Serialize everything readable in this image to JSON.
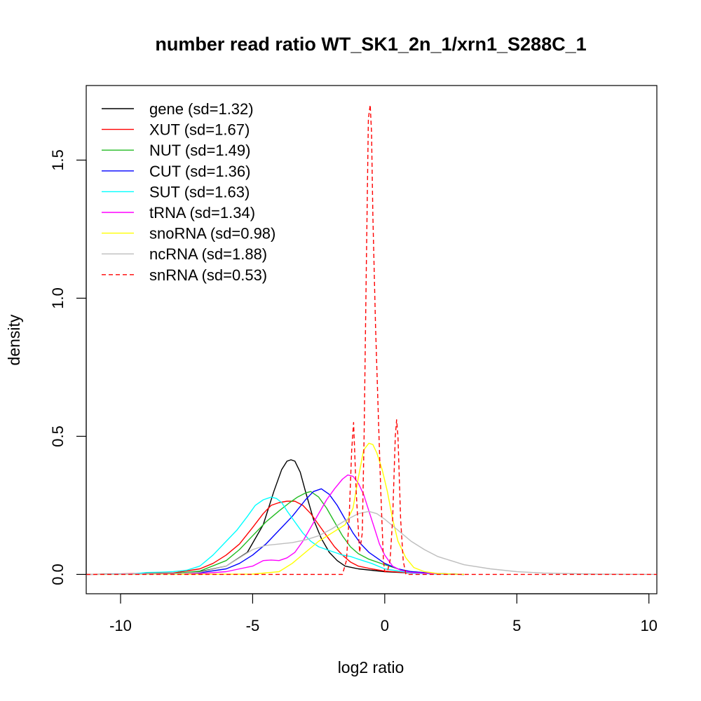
{
  "chart_data": {
    "type": "line",
    "title": "number read ratio WT_SK1_2n_1/xrn1_S288C_1",
    "xlabel": "log2 ratio",
    "ylabel": "density",
    "xlim": [
      -11.3,
      10.3
    ],
    "ylim": [
      -0.07,
      1.77
    ],
    "x_ticks": [
      -10,
      -5,
      0,
      5,
      10
    ],
    "x_tick_labels": [
      "-10",
      "-5",
      "0",
      "5",
      "10"
    ],
    "y_ticks": [
      0.0,
      0.5,
      1.0,
      1.5
    ],
    "y_tick_labels": [
      "0.0",
      "0.5",
      "1.0",
      "1.5"
    ],
    "legend_position": "top-left",
    "grid": false,
    "series": [
      {
        "name": "gene (sd=1.32)",
        "color": "#000000",
        "dash": "solid",
        "x": [
          -11.3,
          -8,
          -7,
          -6,
          -5.2,
          -4.6,
          -4.2,
          -3.9,
          -3.7,
          -3.55,
          -3.4,
          -3.2,
          -3.0,
          -2.7,
          -2.4,
          -2.1,
          -1.8,
          -1.5,
          -1.0,
          0,
          1,
          2,
          3
        ],
        "y": [
          0,
          0.003,
          0.01,
          0.03,
          0.08,
          0.18,
          0.3,
          0.38,
          0.41,
          0.415,
          0.41,
          0.37,
          0.3,
          0.2,
          0.13,
          0.08,
          0.05,
          0.03,
          0.02,
          0.01,
          0.005,
          0.002,
          0
        ]
      },
      {
        "name": "XUT (sd=1.67)",
        "color": "#ff0000",
        "dash": "solid",
        "x": [
          -11.3,
          -8,
          -7,
          -6.5,
          -6,
          -5.5,
          -5,
          -4.6,
          -4.3,
          -4.0,
          -3.7,
          -3.4,
          -3.1,
          -2.8,
          -2.5,
          -2.2,
          -1.9,
          -1.6,
          -1.3,
          -1.0,
          -0.5,
          0,
          1,
          2,
          3
        ],
        "y": [
          0,
          0.005,
          0.02,
          0.04,
          0.07,
          0.11,
          0.17,
          0.22,
          0.25,
          0.26,
          0.265,
          0.265,
          0.25,
          0.22,
          0.18,
          0.14,
          0.1,
          0.07,
          0.045,
          0.03,
          0.02,
          0.012,
          0.005,
          0.002,
          0
        ]
      },
      {
        "name": "NUT (sd=1.49)",
        "color": "#22bb22",
        "dash": "solid",
        "x": [
          -11.3,
          -8,
          -7,
          -6,
          -5.5,
          -5,
          -4.5,
          -4.0,
          -3.6,
          -3.3,
          -3.0,
          -2.8,
          -2.5,
          -2.2,
          -1.9,
          -1.6,
          -1.3,
          -1.0,
          -0.6,
          0,
          0.5,
          1,
          2,
          3
        ],
        "y": [
          0,
          0.003,
          0.012,
          0.05,
          0.09,
          0.14,
          0.19,
          0.23,
          0.26,
          0.28,
          0.295,
          0.3,
          0.28,
          0.24,
          0.19,
          0.14,
          0.1,
          0.075,
          0.055,
          0.035,
          0.02,
          0.01,
          0.003,
          0
        ]
      },
      {
        "name": "CUT (sd=1.36)",
        "color": "#0000ff",
        "dash": "solid",
        "x": [
          -11.3,
          -8,
          -7,
          -6,
          -5.5,
          -5,
          -4.5,
          -4.0,
          -3.5,
          -3.0,
          -2.7,
          -2.4,
          -2.1,
          -1.8,
          -1.5,
          -1.2,
          -0.9,
          -0.6,
          -0.3,
          0,
          0.5,
          1,
          2,
          3
        ],
        "y": [
          0,
          0.002,
          0.006,
          0.02,
          0.04,
          0.07,
          0.11,
          0.16,
          0.21,
          0.27,
          0.3,
          0.31,
          0.29,
          0.25,
          0.2,
          0.15,
          0.11,
          0.08,
          0.06,
          0.04,
          0.02,
          0.01,
          0.003,
          0
        ]
      },
      {
        "name": "SUT (sd=1.63)",
        "color": "#00ffff",
        "dash": "solid",
        "x": [
          -11.3,
          -9.5,
          -9,
          -8.5,
          -8,
          -7.5,
          -7,
          -6.5,
          -6.0,
          -5.6,
          -5.2,
          -4.9,
          -4.6,
          -4.3,
          -4.1,
          -3.9,
          -3.7,
          -3.4,
          -3.1,
          -2.8,
          -2.5,
          -2.2,
          -1.9,
          -1.6,
          -1.3,
          -1.0,
          -0.5,
          0,
          1,
          2,
          3
        ],
        "y": [
          0,
          0.002,
          0.007,
          0.008,
          0.01,
          0.015,
          0.03,
          0.07,
          0.12,
          0.16,
          0.21,
          0.25,
          0.27,
          0.28,
          0.275,
          0.26,
          0.23,
          0.19,
          0.15,
          0.12,
          0.1,
          0.09,
          0.08,
          0.07,
          0.065,
          0.055,
          0.04,
          0.02,
          0.005,
          0.001,
          0
        ]
      },
      {
        "name": "tRNA (sd=1.34)",
        "color": "#ff00ff",
        "dash": "solid",
        "x": [
          -11.3,
          -7,
          -6,
          -5.5,
          -5.0,
          -4.6,
          -4.3,
          -4.0,
          -3.7,
          -3.4,
          -3.1,
          -2.8,
          -2.5,
          -2.2,
          -1.9,
          -1.6,
          -1.4,
          -1.2,
          -1.0,
          -0.8,
          -0.6,
          -0.4,
          -0.2,
          0,
          0.3,
          0.6,
          1,
          2,
          3
        ],
        "y": [
          0,
          0.003,
          0.01,
          0.02,
          0.03,
          0.05,
          0.052,
          0.05,
          0.06,
          0.08,
          0.12,
          0.17,
          0.22,
          0.27,
          0.31,
          0.345,
          0.36,
          0.355,
          0.33,
          0.29,
          0.23,
          0.17,
          0.11,
          0.07,
          0.03,
          0.015,
          0.007,
          0.002,
          0
        ]
      },
      {
        "name": "snoRNA (sd=0.98)",
        "color": "#ffff00",
        "dash": "solid",
        "x": [
          -11.3,
          -5,
          -4.0,
          -3.5,
          -3.0,
          -2.5,
          -2.0,
          -1.5,
          -1.2,
          -1.0,
          -0.8,
          -0.6,
          -0.45,
          -0.3,
          -0.1,
          0.1,
          0.3,
          0.5,
          0.8,
          1.1,
          1.5,
          2,
          3
        ],
        "y": [
          0,
          0.001,
          0.01,
          0.04,
          0.08,
          0.12,
          0.15,
          0.18,
          0.24,
          0.35,
          0.45,
          0.475,
          0.47,
          0.44,
          0.38,
          0.3,
          0.2,
          0.12,
          0.06,
          0.025,
          0.01,
          0.003,
          0
        ]
      },
      {
        "name": "ncRNA (sd=1.88)",
        "color": "#bebebe",
        "dash": "solid",
        "x": [
          -11.3,
          -8,
          -7,
          -6,
          -5.5,
          -5.0,
          -4.5,
          -4.0,
          -3.5,
          -3.0,
          -2.5,
          -2.0,
          -1.5,
          -1.0,
          -0.6,
          -0.3,
          0,
          0.5,
          1.0,
          1.5,
          2.0,
          2.5,
          3.0,
          4.0,
          5.0,
          6.0,
          7.0,
          8.0,
          10.3
        ],
        "y": [
          0,
          0.002,
          0.008,
          0.03,
          0.06,
          0.09,
          0.105,
          0.11,
          0.115,
          0.125,
          0.14,
          0.165,
          0.195,
          0.22,
          0.228,
          0.22,
          0.2,
          0.16,
          0.12,
          0.09,
          0.065,
          0.05,
          0.035,
          0.02,
          0.01,
          0.005,
          0.003,
          0.001,
          0
        ]
      },
      {
        "name": "snRNA (sd=0.53)",
        "color": "#ff0000",
        "dash": "dashed",
        "x": [
          -11.3,
          -1.6,
          -1.45,
          -1.35,
          -1.25,
          -1.18,
          -1.08,
          -0.95,
          -0.85,
          -0.78,
          -0.7,
          -0.62,
          -0.55,
          -0.5,
          -0.45,
          -0.35,
          -0.25,
          -0.15,
          -0.05,
          0.0,
          0.1,
          0.2,
          0.3,
          0.4,
          0.45,
          0.5,
          0.6,
          0.7,
          0.8,
          10.3
        ],
        "y": [
          0,
          0,
          0.05,
          0.2,
          0.45,
          0.55,
          0.3,
          0.08,
          0.15,
          0.5,
          1.1,
          1.65,
          1.7,
          1.6,
          1.3,
          0.9,
          0.6,
          0.3,
          0.05,
          0.01,
          0.01,
          0.05,
          0.2,
          0.5,
          0.56,
          0.5,
          0.2,
          0.05,
          0,
          0
        ]
      }
    ]
  }
}
